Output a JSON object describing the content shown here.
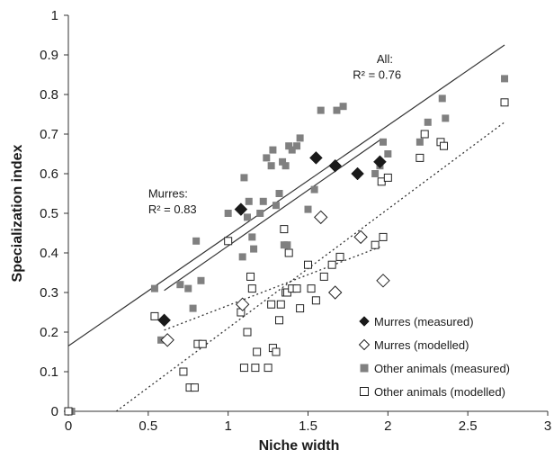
{
  "chart_data": {
    "type": "scatter",
    "xlabel": "Niche width",
    "ylabel": "Specialization index",
    "xlim": [
      0,
      3
    ],
    "ylim": [
      0,
      1
    ],
    "x_ticks": [
      "0",
      "0.5",
      "1",
      "1.5",
      "2",
      "2.5",
      "3"
    ],
    "y_ticks": [
      "0",
      "0.1",
      "0.2",
      "0.3",
      "0.4",
      "0.5",
      "0.6",
      "0.7",
      "0.8",
      "0.9",
      "1"
    ],
    "grid": false,
    "legend_position": "bottom-right",
    "annotations": [
      {
        "text": "All:",
        "x": 1.93,
        "y": 0.88
      },
      {
        "text": "R² = 0.76",
        "x": 1.78,
        "y": 0.84
      },
      {
        "text": "Murres:",
        "x": 0.5,
        "y": 0.54
      },
      {
        "text": "R² = 0.83",
        "x": 0.5,
        "y": 0.5
      }
    ],
    "series": [
      {
        "name": "Murres (measured)",
        "marker": "diamond-filled",
        "color": "#1a1a1a",
        "points": [
          [
            0.6,
            0.23
          ],
          [
            1.08,
            0.51
          ],
          [
            1.55,
            0.64
          ],
          [
            1.67,
            0.62
          ],
          [
            1.81,
            0.6
          ],
          [
            1.95,
            0.63
          ]
        ]
      },
      {
        "name": "Murres (modelled)",
        "marker": "diamond-open",
        "color": "#1a1a1a",
        "points": [
          [
            0.62,
            0.18
          ],
          [
            1.09,
            0.27
          ],
          [
            1.58,
            0.49
          ],
          [
            1.67,
            0.3
          ],
          [
            1.83,
            0.44
          ],
          [
            1.97,
            0.33
          ]
        ]
      },
      {
        "name": "Other animals (measured)",
        "marker": "square-filled",
        "color": "#808080",
        "points": [
          [
            0.02,
            0.0
          ],
          [
            0.54,
            0.31
          ],
          [
            0.58,
            0.18
          ],
          [
            0.7,
            0.32
          ],
          [
            0.75,
            0.31
          ],
          [
            0.8,
            0.43
          ],
          [
            0.83,
            0.33
          ],
          [
            0.78,
            0.26
          ],
          [
            1.0,
            0.5
          ],
          [
            1.09,
            0.39
          ],
          [
            1.1,
            0.59
          ],
          [
            1.12,
            0.49
          ],
          [
            1.13,
            0.53
          ],
          [
            1.15,
            0.44
          ],
          [
            1.16,
            0.41
          ],
          [
            1.2,
            0.5
          ],
          [
            1.22,
            0.53
          ],
          [
            1.24,
            0.64
          ],
          [
            1.27,
            0.62
          ],
          [
            1.28,
            0.66
          ],
          [
            1.3,
            0.52
          ],
          [
            1.32,
            0.55
          ],
          [
            1.34,
            0.63
          ],
          [
            1.35,
            0.42
          ],
          [
            1.36,
            0.62
          ],
          [
            1.37,
            0.42
          ],
          [
            1.38,
            0.67
          ],
          [
            1.4,
            0.66
          ],
          [
            1.43,
            0.67
          ],
          [
            1.45,
            0.69
          ],
          [
            1.5,
            0.51
          ],
          [
            1.54,
            0.56
          ],
          [
            1.58,
            0.76
          ],
          [
            1.68,
            0.76
          ],
          [
            1.72,
            0.77
          ],
          [
            1.92,
            0.6
          ],
          [
            1.95,
            0.62
          ],
          [
            1.97,
            0.68
          ],
          [
            2.0,
            0.65
          ],
          [
            2.2,
            0.68
          ],
          [
            2.25,
            0.73
          ],
          [
            2.34,
            0.79
          ],
          [
            2.36,
            0.74
          ],
          [
            2.73,
            0.84
          ]
        ]
      },
      {
        "name": "Other animals (modelled)",
        "marker": "square-open",
        "color": "#1a1a1a",
        "points": [
          [
            0.0,
            0.0
          ],
          [
            0.54,
            0.24
          ],
          [
            0.72,
            0.1
          ],
          [
            0.76,
            0.06
          ],
          [
            0.79,
            0.06
          ],
          [
            0.81,
            0.17
          ],
          [
            0.84,
            0.17
          ],
          [
            1.0,
            0.43
          ],
          [
            1.08,
            0.25
          ],
          [
            1.1,
            0.11
          ],
          [
            1.12,
            0.2
          ],
          [
            1.14,
            0.34
          ],
          [
            1.15,
            0.31
          ],
          [
            1.17,
            0.11
          ],
          [
            1.18,
            0.15
          ],
          [
            1.25,
            0.11
          ],
          [
            1.27,
            0.27
          ],
          [
            1.28,
            0.16
          ],
          [
            1.3,
            0.15
          ],
          [
            1.32,
            0.23
          ],
          [
            1.33,
            0.27
          ],
          [
            1.35,
            0.46
          ],
          [
            1.36,
            0.3
          ],
          [
            1.37,
            0.3
          ],
          [
            1.38,
            0.4
          ],
          [
            1.4,
            0.31
          ],
          [
            1.43,
            0.31
          ],
          [
            1.45,
            0.26
          ],
          [
            1.5,
            0.37
          ],
          [
            1.52,
            0.31
          ],
          [
            1.55,
            0.28
          ],
          [
            1.6,
            0.34
          ],
          [
            1.65,
            0.37
          ],
          [
            1.7,
            0.39
          ],
          [
            1.92,
            0.42
          ],
          [
            1.96,
            0.58
          ],
          [
            1.97,
            0.44
          ],
          [
            2.0,
            0.59
          ],
          [
            2.2,
            0.64
          ],
          [
            2.23,
            0.7
          ],
          [
            2.33,
            0.68
          ],
          [
            2.35,
            0.67
          ],
          [
            2.73,
            0.78
          ]
        ]
      }
    ],
    "trendlines": [
      {
        "name": "All (measured)",
        "style": "solid",
        "x": [
          0,
          2.73
        ],
        "y": [
          0.165,
          0.925
        ]
      },
      {
        "name": "Murres (measured)",
        "style": "solid",
        "x": [
          0.6,
          1.95
        ],
        "y": [
          0.305,
          0.685
        ]
      },
      {
        "name": "Murres (modelled)",
        "style": "dotted",
        "x": [
          0.6,
          1.95
        ],
        "y": [
          0.205,
          0.415
        ]
      },
      {
        "name": "All (modelled)",
        "style": "dotted",
        "x": [
          0.3,
          2.73
        ],
        "y": [
          0.0,
          0.73
        ]
      }
    ]
  }
}
